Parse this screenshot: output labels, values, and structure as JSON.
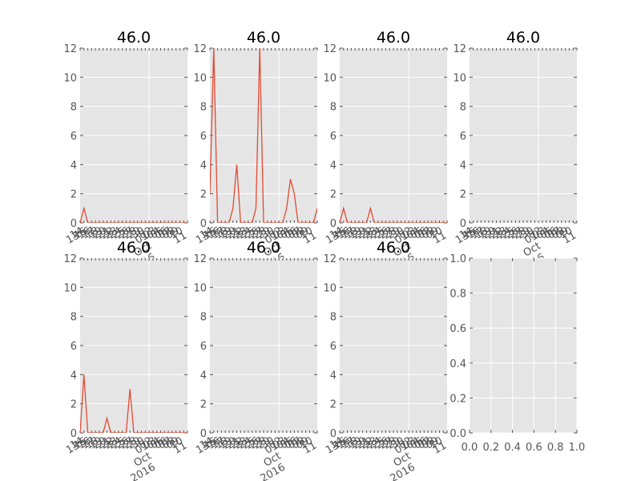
{
  "chart_data": {
    "panels": [
      {
        "type": "line",
        "title": "46.0",
        "x": [
          "2016-09-13",
          "2016-09-14",
          "2016-09-15",
          "2016-09-16",
          "2016-09-17",
          "2016-09-18",
          "2016-09-19",
          "2016-09-20",
          "2016-09-21",
          "2016-09-22",
          "2016-09-23",
          "2016-09-24",
          "2016-09-25",
          "2016-09-26",
          "2016-09-27",
          "2016-09-28",
          "2016-09-29",
          "2016-09-30",
          "2016-10-01",
          "2016-10-02",
          "2016-10-03",
          "2016-10-04",
          "2016-10-05",
          "2016-10-06",
          "2016-10-07",
          "2016-10-08",
          "2016-10-09",
          "2016-10-10",
          "2016-10-11"
        ],
        "y": [
          0,
          1,
          0,
          0,
          0,
          0,
          0,
          0,
          0,
          0,
          0,
          0,
          0,
          0,
          0,
          0,
          0,
          0,
          0,
          0,
          0,
          0,
          0,
          0,
          0,
          0,
          0,
          0,
          0
        ],
        "ylim": [
          0,
          12
        ],
        "yticks": [
          "0",
          "2",
          "4",
          "6",
          "8",
          "10",
          "12"
        ],
        "ytick_values": [
          0,
          2,
          4,
          6,
          8,
          10,
          12
        ],
        "date_axis": true
      },
      {
        "type": "line",
        "title": "46.0",
        "x": [
          "2016-09-13",
          "2016-09-14",
          "2016-09-15",
          "2016-09-16",
          "2016-09-17",
          "2016-09-18",
          "2016-09-19",
          "2016-09-20",
          "2016-09-21",
          "2016-09-22",
          "2016-09-23",
          "2016-09-24",
          "2016-09-25",
          "2016-09-26",
          "2016-09-27",
          "2016-09-28",
          "2016-09-29",
          "2016-09-30",
          "2016-10-01",
          "2016-10-02",
          "2016-10-03",
          "2016-10-04",
          "2016-10-05",
          "2016-10-06",
          "2016-10-07",
          "2016-10-08",
          "2016-10-09",
          "2016-10-10",
          "2016-10-11"
        ],
        "y": [
          2,
          12,
          0,
          0,
          0,
          0,
          1,
          4,
          0,
          0,
          0,
          0,
          1,
          12,
          0,
          0,
          0,
          0,
          0,
          0,
          1,
          3,
          2,
          0,
          0,
          0,
          0,
          0,
          1
        ],
        "ylim": [
          0,
          12
        ],
        "yticks": [
          "0",
          "2",
          "4",
          "6",
          "8",
          "10",
          "12"
        ],
        "ytick_values": [
          0,
          2,
          4,
          6,
          8,
          10,
          12
        ],
        "date_axis": true
      },
      {
        "type": "line",
        "title": "46.0",
        "x": [
          "2016-09-13",
          "2016-09-14",
          "2016-09-15",
          "2016-09-16",
          "2016-09-17",
          "2016-09-18",
          "2016-09-19",
          "2016-09-20",
          "2016-09-21",
          "2016-09-22",
          "2016-09-23",
          "2016-09-24",
          "2016-09-25",
          "2016-09-26",
          "2016-09-27",
          "2016-09-28",
          "2016-09-29",
          "2016-09-30",
          "2016-10-01",
          "2016-10-02",
          "2016-10-03",
          "2016-10-04",
          "2016-10-05",
          "2016-10-06",
          "2016-10-07",
          "2016-10-08",
          "2016-10-09",
          "2016-10-10",
          "2016-10-11"
        ],
        "y": [
          0,
          1,
          0,
          0,
          0,
          0,
          0,
          0,
          1,
          0,
          0,
          0,
          0,
          0,
          0,
          0,
          0,
          0,
          0,
          0,
          0,
          0,
          0,
          0,
          0,
          0,
          0,
          0,
          0
        ],
        "ylim": [
          0,
          12
        ],
        "yticks": [
          "0",
          "2",
          "4",
          "6",
          "8",
          "10",
          "12"
        ],
        "ytick_values": [
          0,
          2,
          4,
          6,
          8,
          10,
          12
        ],
        "date_axis": true
      },
      {
        "type": "line",
        "title": "46.0",
        "x": [],
        "y": [],
        "ylim": [
          0,
          12
        ],
        "yticks": [
          "0",
          "2",
          "4",
          "6",
          "8",
          "10",
          "12"
        ],
        "ytick_values": [
          0,
          2,
          4,
          6,
          8,
          10,
          12
        ],
        "date_axis": true
      },
      {
        "type": "line",
        "title": "46.0",
        "x": [
          "2016-09-13",
          "2016-09-14",
          "2016-09-15",
          "2016-09-16",
          "2016-09-17",
          "2016-09-18",
          "2016-09-19",
          "2016-09-20",
          "2016-09-21",
          "2016-09-22",
          "2016-09-23",
          "2016-09-24",
          "2016-09-25",
          "2016-09-26",
          "2016-09-27",
          "2016-09-28",
          "2016-09-29",
          "2016-09-30",
          "2016-10-01",
          "2016-10-02",
          "2016-10-03",
          "2016-10-04",
          "2016-10-05",
          "2016-10-06",
          "2016-10-07",
          "2016-10-08",
          "2016-10-09",
          "2016-10-10",
          "2016-10-11"
        ],
        "y": [
          0,
          4,
          0,
          0,
          0,
          0,
          0,
          1,
          0,
          0,
          0,
          0,
          0,
          3,
          0,
          0,
          0,
          0,
          0,
          0,
          0,
          0,
          0,
          0,
          0,
          0,
          0,
          0,
          0
        ],
        "ylim": [
          0,
          12
        ],
        "yticks": [
          "0",
          "2",
          "4",
          "6",
          "8",
          "10",
          "12"
        ],
        "ytick_values": [
          0,
          2,
          4,
          6,
          8,
          10,
          12
        ],
        "date_axis": true
      },
      {
        "type": "line",
        "title": "46.0",
        "x": [],
        "y": [],
        "ylim": [
          0,
          12
        ],
        "yticks": [
          "0",
          "2",
          "4",
          "6",
          "8",
          "10",
          "12"
        ],
        "ytick_values": [
          0,
          2,
          4,
          6,
          8,
          10,
          12
        ],
        "date_axis": true
      },
      {
        "type": "line",
        "title": "46.0",
        "x": [],
        "y": [],
        "ylim": [
          0,
          12
        ],
        "yticks": [
          "0",
          "2",
          "4",
          "6",
          "8",
          "10",
          "12"
        ],
        "ytick_values": [
          0,
          2,
          4,
          6,
          8,
          10,
          12
        ],
        "date_axis": true
      },
      {
        "type": "line",
        "title": "",
        "x": [],
        "y": [],
        "xlim": [
          0,
          1
        ],
        "ylim": [
          0,
          1
        ],
        "xticks": [
          "0.0",
          "0.2",
          "0.4",
          "0.6",
          "0.8",
          "1.0"
        ],
        "yticks": [
          "0.0",
          "0.2",
          "0.4",
          "0.6",
          "0.8",
          "1.0"
        ],
        "xtick_values": [
          0,
          0.2,
          0.4,
          0.6,
          0.8,
          1.0
        ],
        "ytick_values": [
          0,
          0.2,
          0.4,
          0.6,
          0.8,
          1.0
        ],
        "date_axis": false
      }
    ],
    "date_ticks": {
      "dates": [
        "2016-09-13",
        "2016-09-14",
        "2016-09-15",
        "2016-09-16",
        "2016-09-17",
        "2016-09-18",
        "2016-09-19",
        "2016-09-20",
        "2016-09-21",
        "2016-09-22",
        "2016-09-23",
        "2016-09-24",
        "2016-09-25",
        "2016-09-26",
        "2016-09-27",
        "2016-09-28",
        "2016-09-29",
        "2016-09-30",
        "2016-10-01",
        "2016-10-02",
        "2016-10-03",
        "2016-10-04",
        "2016-10-05",
        "2016-10-06",
        "2016-10-07",
        "2016-10-08",
        "2016-10-09",
        "2016-10-10",
        "2016-10-11"
      ],
      "labels": [
        "13",
        "14",
        "15",
        "16",
        "17",
        "18",
        "19",
        "20",
        "21",
        "22",
        "23",
        "24",
        "25",
        "26",
        "27",
        "28",
        "29",
        "30",
        "01",
        "02",
        "03",
        "04",
        "05",
        "06",
        "07",
        "08",
        "09",
        "10",
        "11"
      ],
      "month_label": "Oct",
      "year_label": "2016"
    },
    "grid": true,
    "colors": {
      "line": "#e24a33",
      "axes_bg": "#e5e5e5",
      "grid": "#ffffff",
      "tick_text": "#555555",
      "title_text": "#000000"
    }
  }
}
